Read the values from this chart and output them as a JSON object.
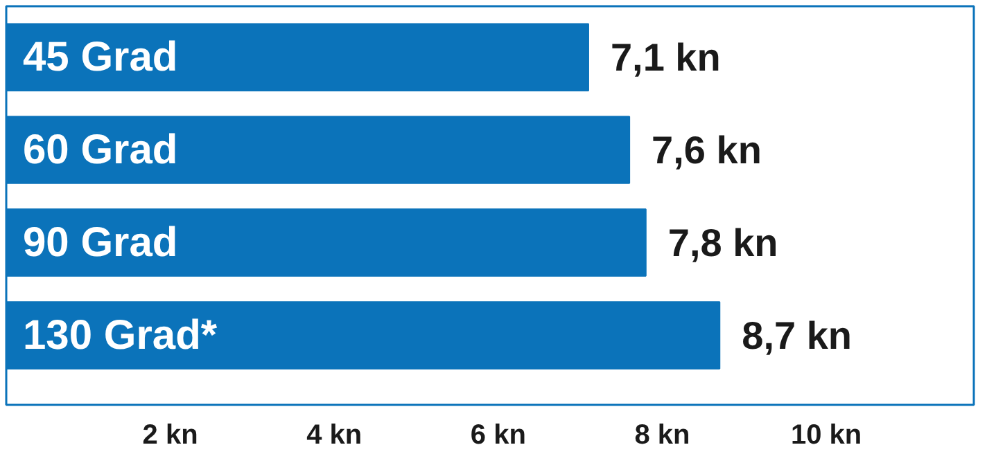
{
  "chart_data": {
    "type": "bar",
    "orientation": "horizontal",
    "categories": [
      "45 Grad",
      "60 Grad",
      "90 Grad",
      "130 Grad*"
    ],
    "values": [
      7.1,
      7.6,
      7.8,
      8.7
    ],
    "value_labels": [
      "7,1 kn",
      "7,6 kn",
      "7,8 kn",
      "8,7 kn"
    ],
    "color": "#0b73ba",
    "xlim": [
      0,
      11.8
    ],
    "xticks": [
      {
        "value": 2,
        "label": "2 kn"
      },
      {
        "value": 4,
        "label": "4 kn"
      },
      {
        "value": 6,
        "label": "6 kn"
      },
      {
        "value": 8,
        "label": "8 kn"
      },
      {
        "value": 10,
        "label": "10 kn"
      }
    ],
    "tick_labels": "x",
    "grid": false
  }
}
